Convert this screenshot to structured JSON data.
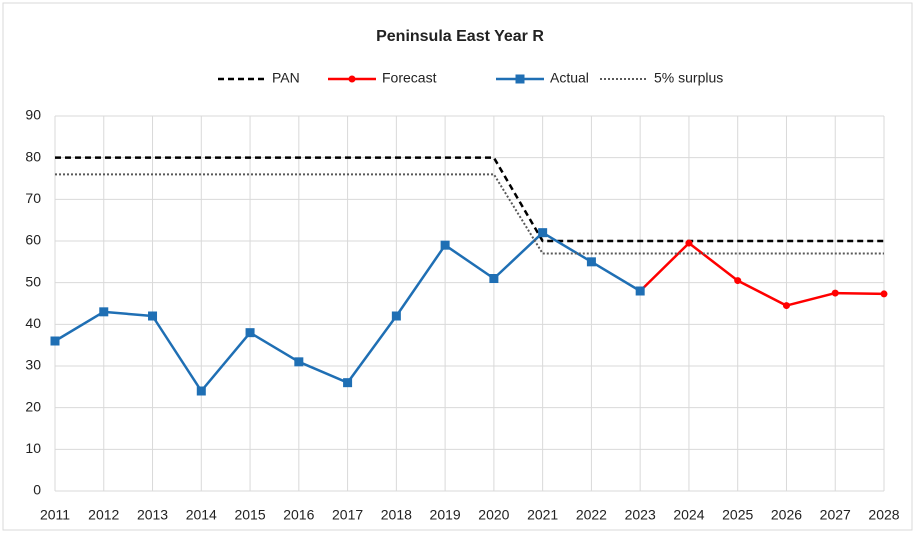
{
  "chart_data": {
    "type": "line",
    "title": "Peninsula East Year R",
    "categories": [
      "2011",
      "2012",
      "2013",
      "2014",
      "2015",
      "2016",
      "2017",
      "2018",
      "2019",
      "2020",
      "2021",
      "2022",
      "2023",
      "2024",
      "2025",
      "2026",
      "2027",
      "2028"
    ],
    "series": [
      {
        "name": "PAN",
        "color": "#000000",
        "style": "dashed",
        "values": [
          80,
          80,
          80,
          80,
          80,
          80,
          80,
          80,
          80,
          80,
          60,
          60,
          60,
          60,
          60,
          60,
          60,
          60
        ]
      },
      {
        "name": "Forecast",
        "color": "#ff0000",
        "marker": "circle",
        "values": [
          null,
          null,
          null,
          null,
          null,
          null,
          null,
          null,
          null,
          null,
          null,
          null,
          48,
          59.5,
          50.5,
          44.5,
          47.5,
          47.3
        ]
      },
      {
        "name": "Actual",
        "color": "#1f6fb4",
        "marker": "square",
        "values": [
          36,
          43,
          42,
          24,
          38,
          31,
          26,
          42,
          59,
          51,
          62,
          55,
          48,
          null,
          null,
          null,
          null,
          null
        ]
      },
      {
        "name": "5% surplus",
        "color": "#595959",
        "style": "dotted",
        "values": [
          76,
          76,
          76,
          76,
          76,
          76,
          76,
          76,
          76,
          76,
          57,
          57,
          57,
          57,
          57,
          57,
          57,
          57
        ]
      }
    ],
    "ylim": [
      0,
      90
    ],
    "yticks": [
      0,
      10,
      20,
      30,
      40,
      50,
      60,
      70,
      80,
      90
    ],
    "grid": true,
    "legend": "top"
  }
}
